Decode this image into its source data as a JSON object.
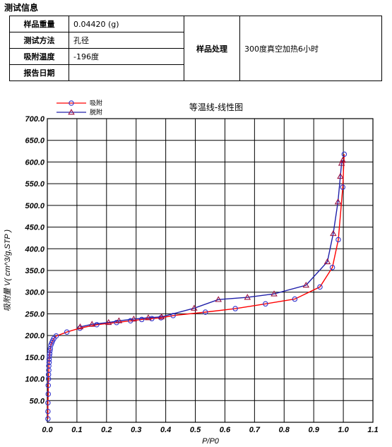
{
  "section_title": "测试信息",
  "info": {
    "rows": [
      {
        "label": "样品重量",
        "value": "0.04420 (g)"
      },
      {
        "label": "测试方法",
        "value": "孔径"
      },
      {
        "label": "吸附温度",
        "value": "-196度"
      },
      {
        "label": "报告日期",
        "value": ""
      }
    ],
    "treatment_label": "样品处理",
    "treatment_value": "300度真空加热6小时"
  },
  "colors": {
    "adsorption": "#ff0000",
    "desorption": "#2020aa",
    "ads_marker": "#3333cc",
    "des_marker": "#9a1040"
  },
  "chart_data": {
    "type": "line",
    "title": "等温线-线性图",
    "xlabel": "P/P0",
    "ylabel": "吸附量 V( cm^3/g,STP )",
    "xlim": [
      0.0,
      1.1
    ],
    "ylim": [
      0.0,
      700.0
    ],
    "xticks": [
      "0.0",
      "0.1",
      "0.2",
      "0.3",
      "0.4",
      "0.5",
      "0.6",
      "0.7",
      "0.8",
      "0.9",
      "1.0",
      "1.1"
    ],
    "yticks": [
      "50.0",
      "100.0",
      "150.0",
      "200.0",
      "250.0",
      "300.0",
      "350.0",
      "400.0",
      "450.0",
      "500.0",
      "550.0",
      "600.0",
      "650.0",
      "700.0"
    ],
    "grid": true,
    "legend_position": "top-left",
    "series": [
      {
        "name": "吸附",
        "marker": "circle",
        "x": [
          0.002,
          0.002,
          0.002,
          0.003,
          0.003,
          0.004,
          0.004,
          0.005,
          0.005,
          0.006,
          0.006,
          0.007,
          0.008,
          0.009,
          0.01,
          0.012,
          0.015,
          0.018,
          0.022,
          0.03,
          0.066,
          0.11,
          0.167,
          0.234,
          0.281,
          0.319,
          0.353,
          0.384,
          0.425,
          0.534,
          0.635,
          0.737,
          0.836,
          0.921,
          0.963,
          0.983,
          0.998,
          1.003
        ],
        "y": [
          8,
          25,
          45,
          65,
          85,
          100,
          110,
          120,
          130,
          138,
          145,
          152,
          158,
          165,
          170,
          178,
          183,
          188,
          193,
          199,
          208,
          217,
          225,
          230,
          234,
          237,
          239,
          241,
          246,
          254,
          262,
          273,
          284,
          312,
          357,
          421,
          542,
          618
        ]
      },
      {
        "name": "脱附",
        "marker": "triangle",
        "x": [
          0.998,
          0.994,
          0.99,
          0.982,
          0.966,
          0.946,
          0.874,
          0.766,
          0.676,
          0.578,
          0.496,
          0.386,
          0.341,
          0.292,
          0.242,
          0.207,
          0.151,
          0.111
        ],
        "y": [
          604,
          597,
          567,
          508,
          435,
          370,
          316,
          296,
          288,
          283,
          263,
          243,
          241,
          238,
          234,
          230,
          226,
          220
        ]
      }
    ]
  }
}
